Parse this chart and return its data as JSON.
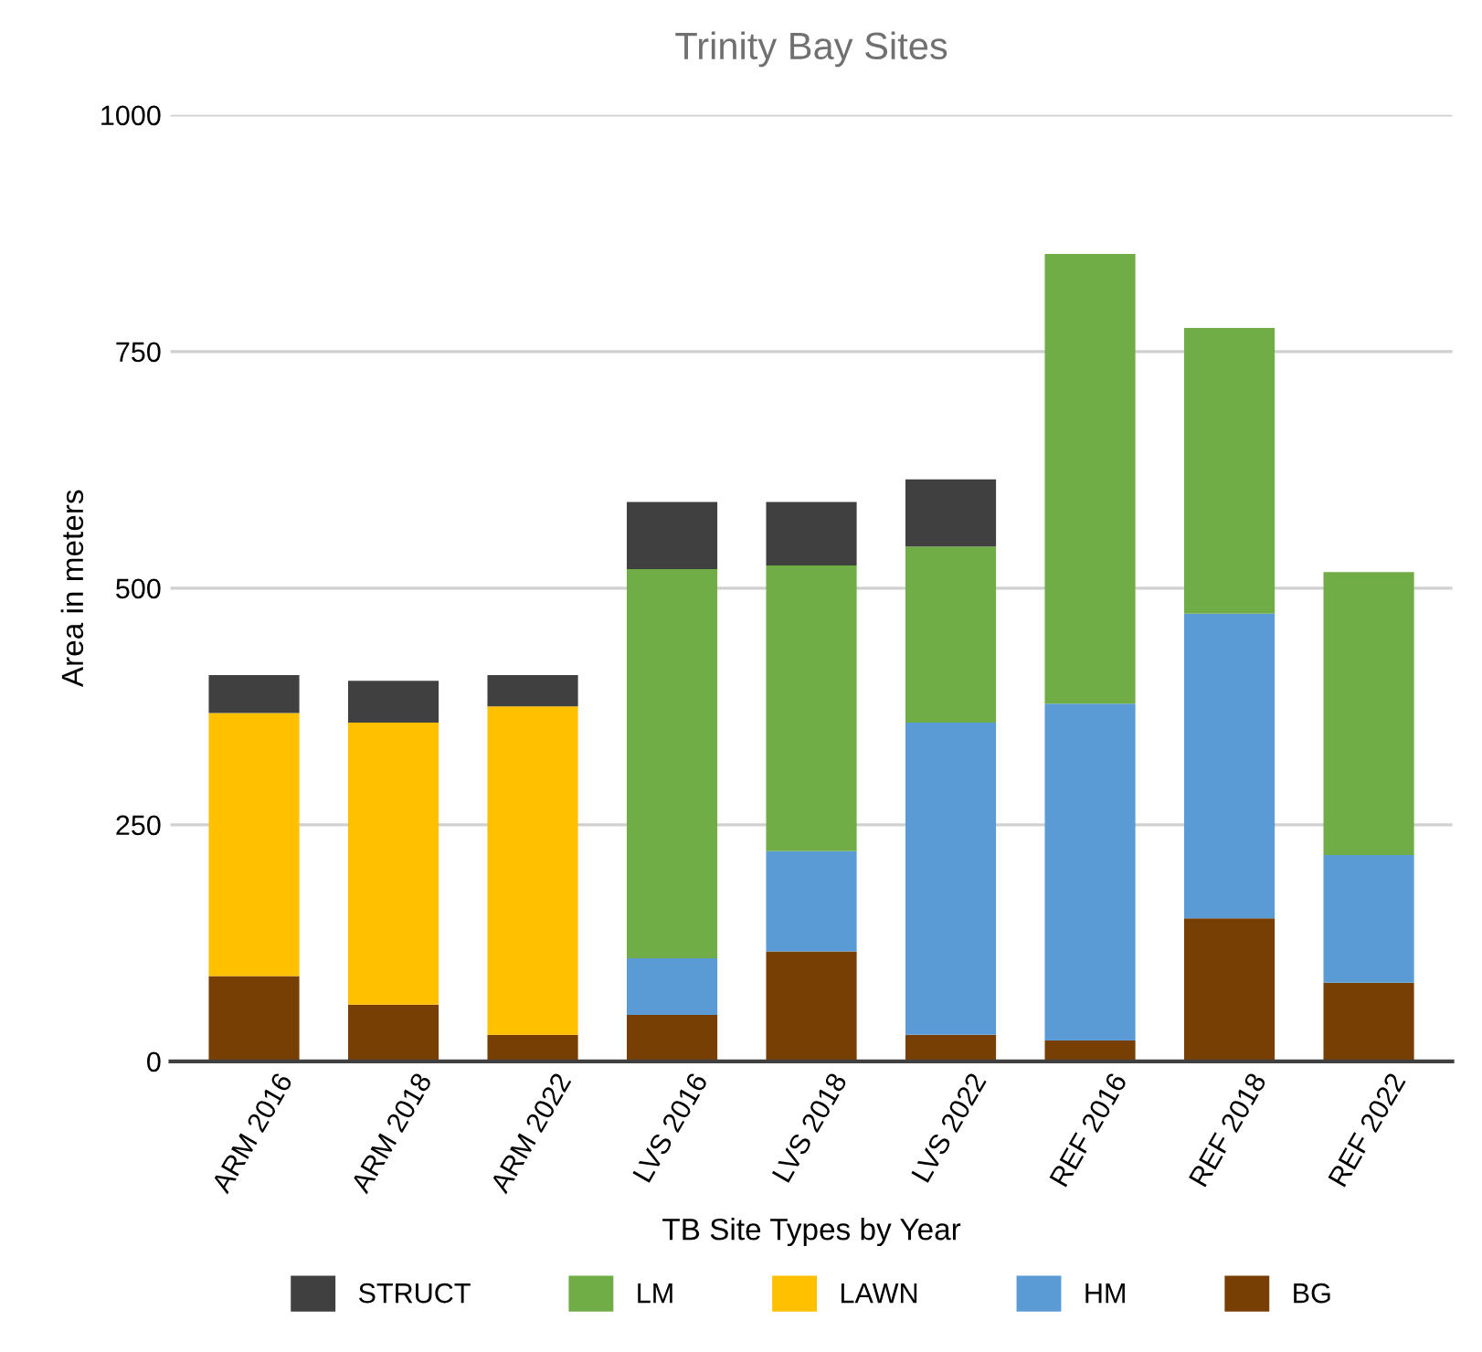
{
  "chart_data": {
    "type": "bar",
    "title": "Trinity Bay Sites",
    "xlabel": "TB Site Types by Year",
    "ylabel": "Area in meters",
    "categories": [
      "ARM 2016",
      "ARM 2018",
      "ARM 2022",
      "LVS 2016",
      "LVS 2018",
      "LVS 2022",
      "REF 2016",
      "REF 2018",
      "REF 2022"
    ],
    "stacked": true,
    "series": [
      {
        "name": "BG",
        "color": "#783f04",
        "values": [
          90,
          60,
          28,
          49,
          116,
          28,
          22,
          151,
          83
        ]
      },
      {
        "name": "HM",
        "color": "#5b9bd5",
        "values": [
          0,
          0,
          0,
          60,
          106,
          330,
          356,
          322,
          135
        ]
      },
      {
        "name": "LAWN",
        "color": "#ffc000",
        "values": [
          278,
          298,
          347,
          0,
          0,
          0,
          0,
          0,
          0
        ]
      },
      {
        "name": "LM",
        "color": "#70ad47",
        "values": [
          0,
          0,
          0,
          411,
          302,
          186,
          475,
          302,
          299
        ]
      },
      {
        "name": "STRUCT",
        "color": "#404040",
        "values": [
          40,
          44,
          33,
          71,
          67,
          71,
          0,
          0,
          0
        ]
      }
    ],
    "ylim": [
      0,
      1000
    ],
    "yticks": [
      0,
      250,
      500,
      750,
      1000
    ],
    "grid": "y",
    "legend": "bottom"
  }
}
